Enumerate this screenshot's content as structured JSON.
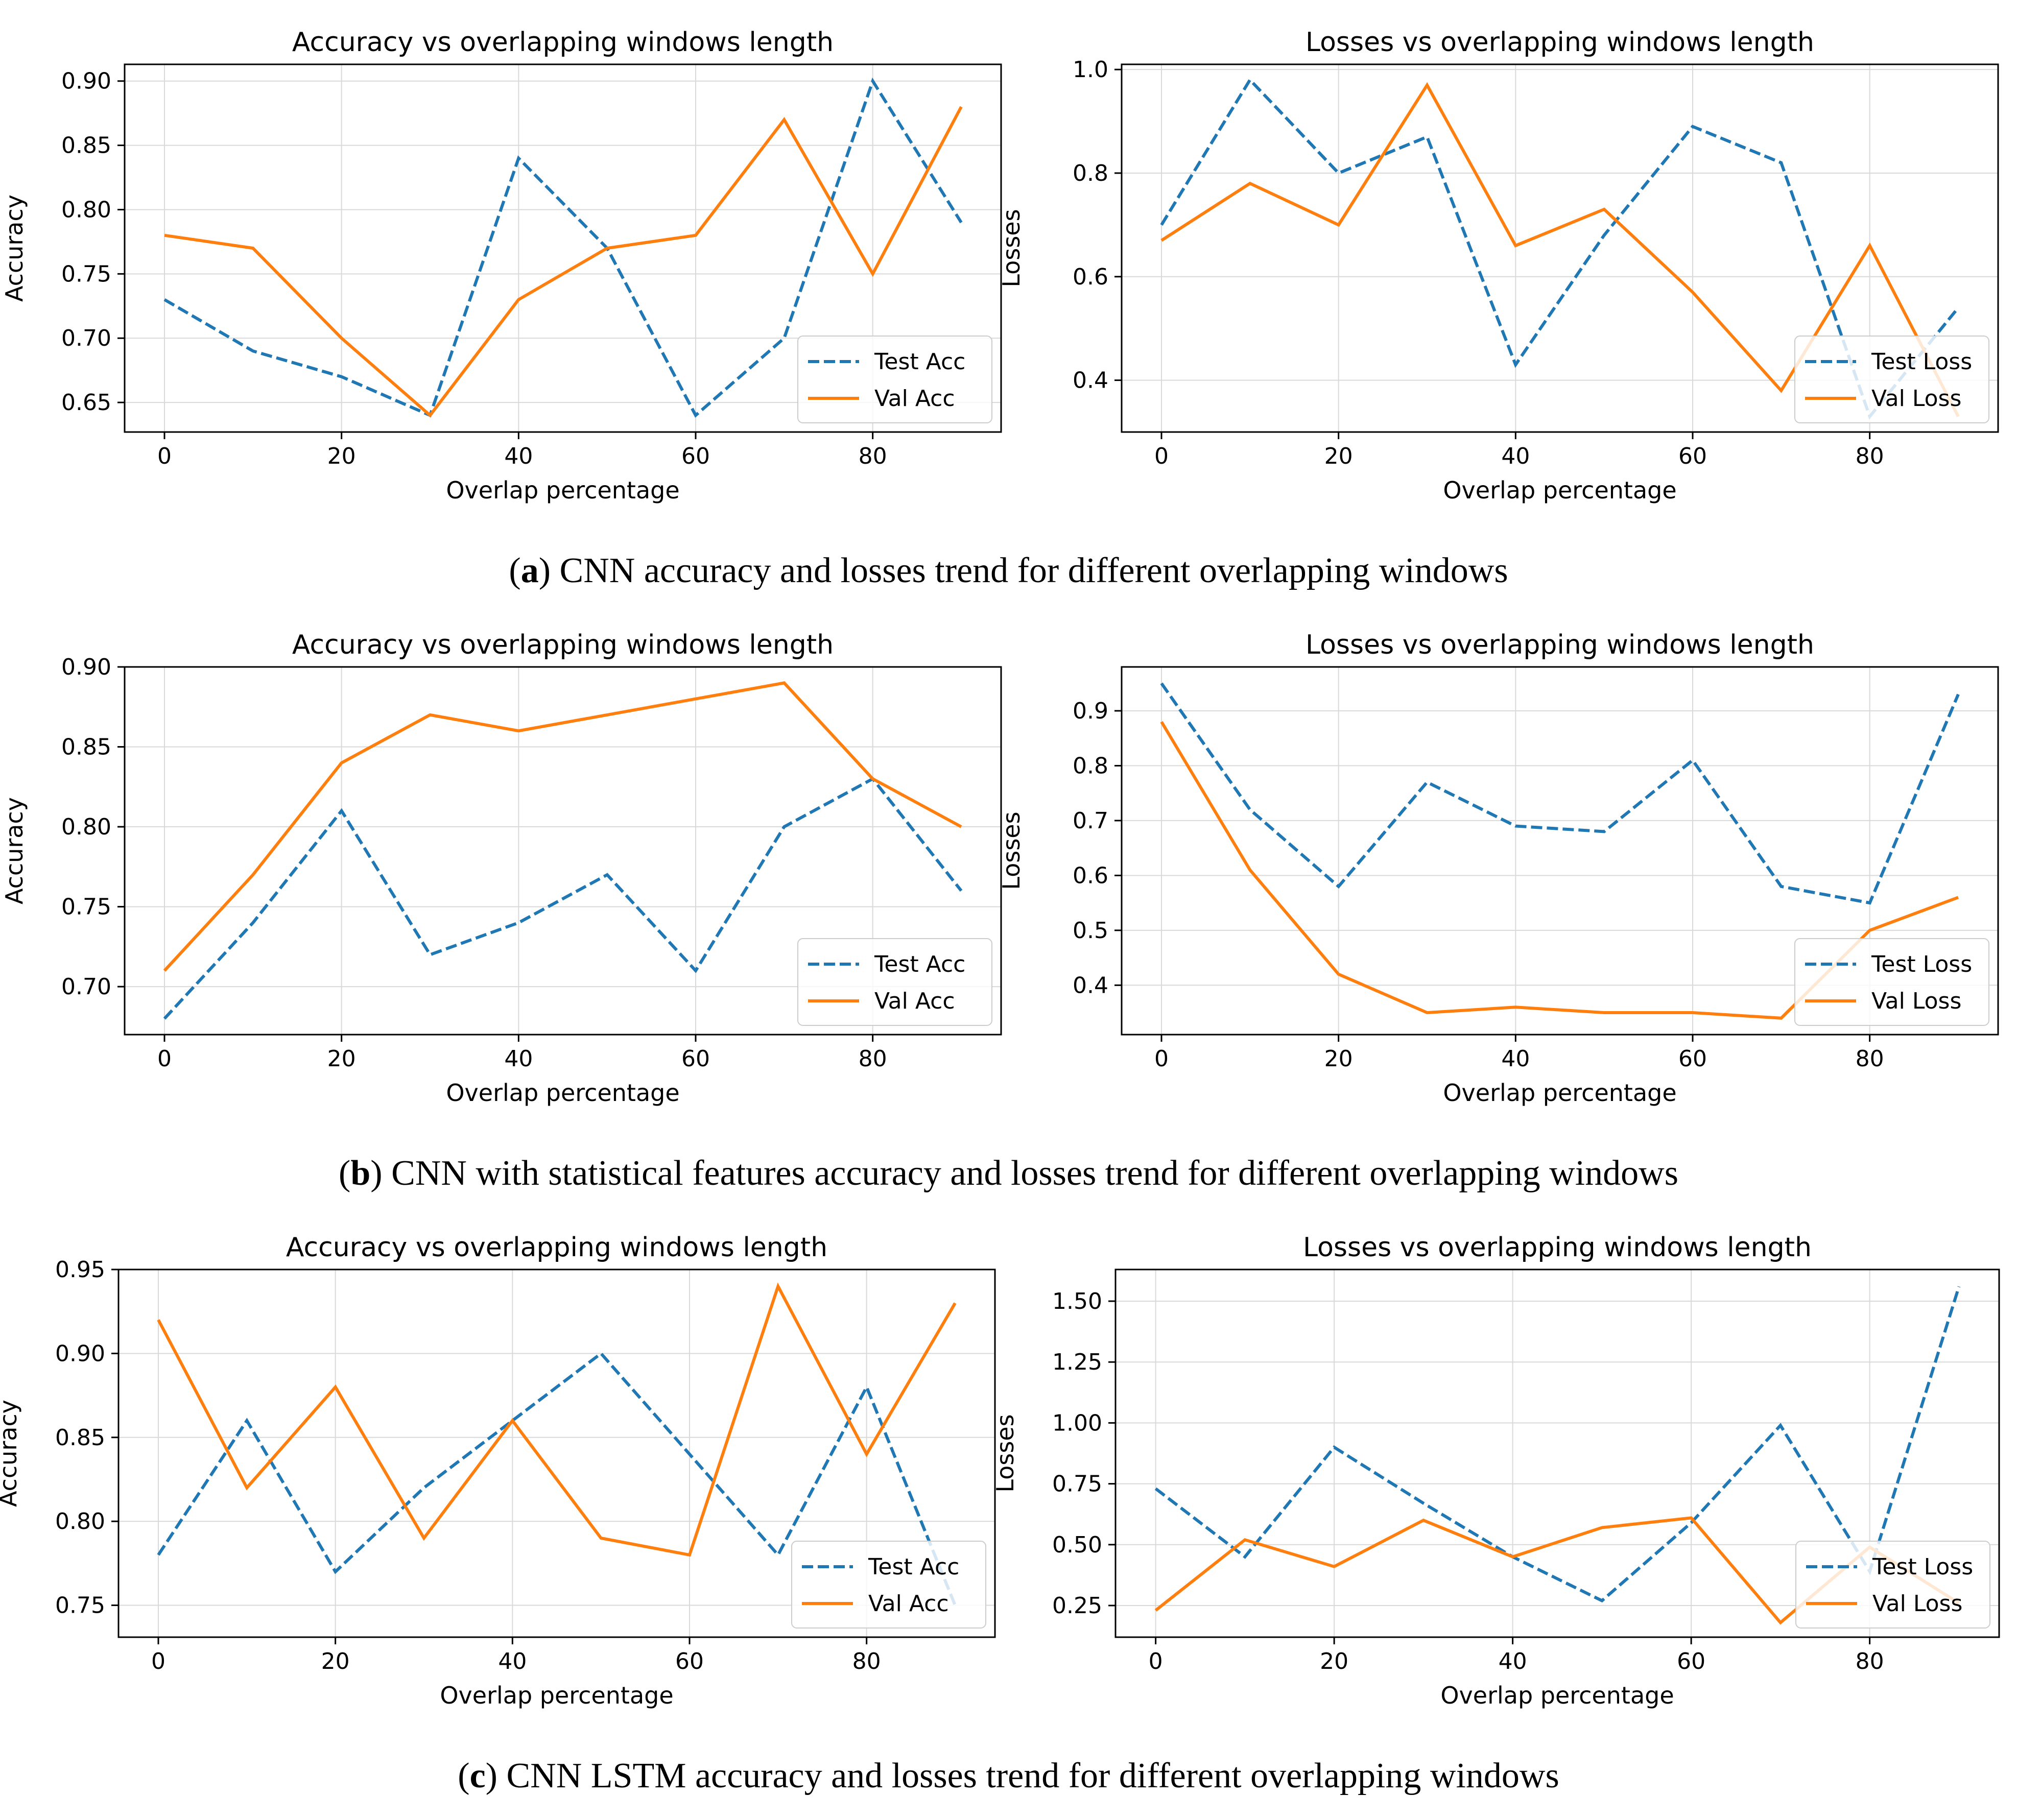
{
  "colors": {
    "test": "#1f77b4",
    "val": "#ff7f0e",
    "grid": "#d9d9d9",
    "axis": "#000000"
  },
  "captions": [
    {
      "letter": "a",
      "text": "CNN accuracy and losses trend for different overlapping windows"
    },
    {
      "letter": "b",
      "text": "CNN with statistical features accuracy and losses trend for different overlapping windows"
    },
    {
      "letter": "c",
      "text": "CNN LSTM accuracy and losses trend for different overlapping windows"
    }
  ],
  "chart_data": [
    {
      "type": "line",
      "title": "Accuracy vs overlapping windows length",
      "xlabel": "Overlap percentage",
      "ylabel": "Accuracy",
      "x": [
        0,
        10,
        20,
        30,
        40,
        50,
        60,
        70,
        80,
        90
      ],
      "xlim": [
        -4.5,
        94.5
      ],
      "ylim": [
        0.627,
        0.913
      ],
      "xticks": [
        0,
        20,
        40,
        60,
        80
      ],
      "yticks": [
        0.65,
        0.7,
        0.75,
        0.8,
        0.85,
        0.9
      ],
      "ytick_labels": [
        "0.65",
        "0.70",
        "0.75",
        "0.80",
        "0.85",
        "0.90"
      ],
      "grid": true,
      "legend_position": "lower-right",
      "series": [
        {
          "name": "Test Acc",
          "style": "dashed",
          "values": [
            0.73,
            0.69,
            0.67,
            0.64,
            0.84,
            0.77,
            0.64,
            0.7,
            0.9,
            0.79
          ]
        },
        {
          "name": "Val Acc",
          "style": "solid",
          "values": [
            0.78,
            0.77,
            0.7,
            0.64,
            0.73,
            0.77,
            0.78,
            0.87,
            0.75,
            0.88
          ]
        }
      ]
    },
    {
      "type": "line",
      "title": "Losses vs overlapping windows length",
      "xlabel": "Overlap percentage",
      "ylabel": "Losses",
      "x": [
        0,
        10,
        20,
        30,
        40,
        50,
        60,
        70,
        80,
        90
      ],
      "xlim": [
        -4.5,
        94.5
      ],
      "ylim": [
        0.3,
        1.01
      ],
      "xticks": [
        0,
        20,
        40,
        60,
        80
      ],
      "yticks": [
        0.4,
        0.6,
        0.8,
        1.0
      ],
      "ytick_labels": [
        "0.4",
        "0.6",
        "0.8",
        "1.0"
      ],
      "grid": true,
      "legend_position": "lower-right",
      "series": [
        {
          "name": "Test Loss",
          "style": "dashed",
          "values": [
            0.7,
            0.98,
            0.8,
            0.87,
            0.43,
            0.68,
            0.89,
            0.82,
            0.33,
            0.54
          ]
        },
        {
          "name": "Val Loss",
          "style": "solid",
          "values": [
            0.67,
            0.78,
            0.7,
            0.97,
            0.66,
            0.73,
            0.57,
            0.38,
            0.66,
            0.33
          ]
        }
      ]
    },
    {
      "type": "line",
      "title": "Accuracy vs overlapping windows length",
      "xlabel": "Overlap percentage",
      "ylabel": "Accuracy",
      "x": [
        0,
        10,
        20,
        30,
        40,
        50,
        60,
        70,
        80,
        90
      ],
      "xlim": [
        -4.5,
        94.5
      ],
      "ylim": [
        0.67,
        0.9
      ],
      "xticks": [
        0,
        20,
        40,
        60,
        80
      ],
      "yticks": [
        0.7,
        0.75,
        0.8,
        0.85,
        0.9
      ],
      "ytick_labels": [
        "0.70",
        "0.75",
        "0.80",
        "0.85",
        "0.90"
      ],
      "grid": true,
      "legend_position": "lower-right",
      "series": [
        {
          "name": "Test Acc",
          "style": "dashed",
          "values": [
            0.68,
            0.74,
            0.81,
            0.72,
            0.74,
            0.77,
            0.71,
            0.8,
            0.83,
            0.76
          ]
        },
        {
          "name": "Val Acc",
          "style": "solid",
          "values": [
            0.71,
            0.77,
            0.84,
            0.87,
            0.86,
            0.87,
            0.88,
            0.89,
            0.83,
            0.8
          ]
        }
      ]
    },
    {
      "type": "line",
      "title": "Losses vs overlapping windows length",
      "xlabel": "Overlap percentage",
      "ylabel": "Losses",
      "x": [
        0,
        10,
        20,
        30,
        40,
        50,
        60,
        70,
        80,
        90
      ],
      "xlim": [
        -4.5,
        94.5
      ],
      "ylim": [
        0.31,
        0.98
      ],
      "xticks": [
        0,
        20,
        40,
        60,
        80
      ],
      "yticks": [
        0.4,
        0.5,
        0.6,
        0.7,
        0.8,
        0.9
      ],
      "ytick_labels": [
        "0.4",
        "0.5",
        "0.6",
        "0.7",
        "0.8",
        "0.9"
      ],
      "grid": true,
      "legend_position": "lower-right",
      "series": [
        {
          "name": "Test Loss",
          "style": "dashed",
          "values": [
            0.95,
            0.72,
            0.58,
            0.77,
            0.69,
            0.68,
            0.81,
            0.58,
            0.55,
            0.93
          ]
        },
        {
          "name": "Val Loss",
          "style": "solid",
          "values": [
            0.88,
            0.61,
            0.42,
            0.35,
            0.36,
            0.35,
            0.35,
            0.34,
            0.5,
            0.56
          ]
        }
      ]
    },
    {
      "type": "line",
      "title": "Accuracy vs overlapping windows length",
      "xlabel": "Overlap percentage",
      "ylabel": "Accuracy",
      "x": [
        0,
        10,
        20,
        30,
        40,
        50,
        60,
        70,
        80,
        90
      ],
      "xlim": [
        -4.5,
        94.5
      ],
      "ylim": [
        0.731,
        0.95
      ],
      "xticks": [
        0,
        20,
        40,
        60,
        80
      ],
      "yticks": [
        0.75,
        0.8,
        0.85,
        0.9,
        0.95
      ],
      "ytick_labels": [
        "0.75",
        "0.80",
        "0.85",
        "0.90",
        "0.95"
      ],
      "grid": true,
      "legend_position": "lower-right",
      "series": [
        {
          "name": "Test Acc",
          "style": "dashed",
          "values": [
            0.78,
            0.86,
            0.77,
            0.82,
            0.86,
            0.9,
            0.84,
            0.78,
            0.88,
            0.75
          ]
        },
        {
          "name": "Val Acc",
          "style": "solid",
          "values": [
            0.92,
            0.82,
            0.88,
            0.79,
            0.86,
            0.79,
            0.78,
            0.94,
            0.84,
            0.93
          ]
        }
      ]
    },
    {
      "type": "line",
      "title": "Losses vs overlapping windows length",
      "xlabel": "Overlap percentage",
      "ylabel": "Losses",
      "x": [
        0,
        10,
        20,
        30,
        40,
        50,
        60,
        70,
        80,
        90
      ],
      "xlim": [
        -4.5,
        94.5
      ],
      "ylim": [
        0.12,
        1.63
      ],
      "xticks": [
        0,
        20,
        40,
        60,
        80
      ],
      "yticks": [
        0.25,
        0.5,
        0.75,
        1.0,
        1.25,
        1.5
      ],
      "ytick_labels": [
        "0.25",
        "0.50",
        "0.75",
        "1.00",
        "1.25",
        "1.50"
      ],
      "grid": true,
      "legend_position": "lower-right",
      "series": [
        {
          "name": "Test Loss",
          "style": "dashed",
          "values": [
            0.73,
            0.45,
            0.9,
            0.67,
            0.45,
            0.27,
            0.59,
            0.99,
            0.39,
            1.56
          ]
        },
        {
          "name": "Val Loss",
          "style": "solid",
          "values": [
            0.23,
            0.52,
            0.41,
            0.6,
            0.45,
            0.57,
            0.61,
            0.18,
            0.49,
            0.26
          ]
        }
      ]
    }
  ]
}
